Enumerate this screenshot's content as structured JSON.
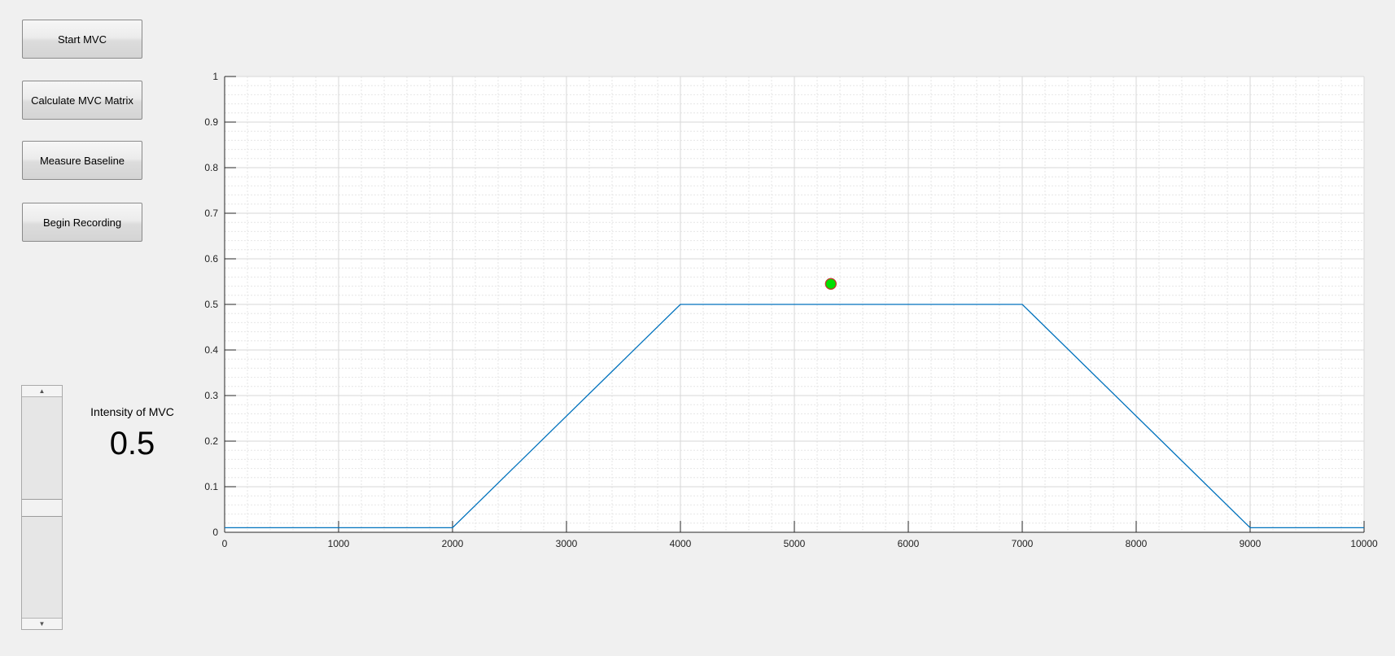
{
  "buttons": {
    "start_mvc": "Start MVC",
    "calculate_mvc_matrix": "Calculate MVC Matrix",
    "measure_baseline": "Measure Baseline",
    "begin_recording": "Begin Recording"
  },
  "intensity": {
    "label": "Intensity of MVC",
    "value": "0.5"
  },
  "slider": {
    "level": 0.5,
    "up_icon": "triangle-up",
    "down_icon": "triangle-down"
  },
  "chart_data": {
    "type": "line",
    "title": "",
    "xlabel": "",
    "ylabel": "",
    "xlim": [
      0,
      10000
    ],
    "ylim": [
      0,
      1
    ],
    "xticks": [
      "0",
      "1000",
      "2000",
      "3000",
      "4000",
      "5000",
      "6000",
      "7000",
      "8000",
      "9000",
      "10000"
    ],
    "yticks": [
      "0",
      "0.1",
      "0.2",
      "0.3",
      "0.4",
      "0.5",
      "0.6",
      "0.7",
      "0.8",
      "0.9",
      "1"
    ],
    "grid": true,
    "minor_grid": true,
    "series": [
      {
        "color": "#0072BD",
        "x": [
          0,
          2000,
          4000,
          7000,
          9000,
          10000
        ],
        "y": [
          0.01,
          0.01,
          0.5,
          0.5,
          0.01,
          0.01
        ]
      }
    ],
    "marker": {
      "x": 5320,
      "y": 0.545,
      "fill": "#00e000",
      "edge": "#c0392b"
    }
  }
}
